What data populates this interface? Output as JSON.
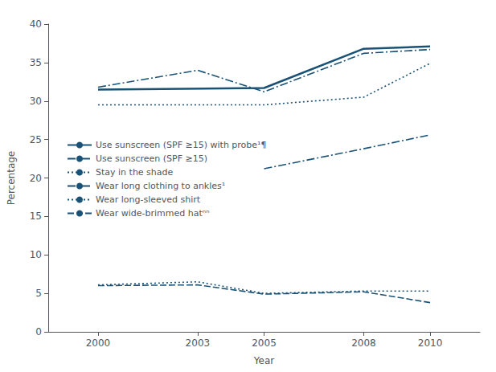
{
  "chart_data": {
    "type": "line",
    "xlabel": "Year",
    "ylabel": "Percentage",
    "x": [
      2000,
      2003,
      2005,
      2008,
      2010
    ],
    "xlim": [
      1998.5,
      2011.5
    ],
    "xticks": [
      2000,
      2003,
      2005,
      2008,
      2010
    ],
    "ylim": [
      0,
      40
    ],
    "yticks": [
      0,
      5,
      10,
      15,
      20,
      25,
      30,
      35,
      40
    ],
    "grid": false,
    "legend": "center left",
    "color": "#1a5276",
    "series": [
      {
        "name": "Use sunscreen (SPF ≥15) with probe¹¶",
        "values": [
          31.5,
          null,
          31.7,
          36.8,
          37.1
        ],
        "line_style": "solid"
      },
      {
        "name": "Use sunscreen (SPF ≥15)",
        "values": [
          31.8,
          34.0,
          31.2,
          36.2,
          36.7
        ],
        "line_style": "dashdot"
      },
      {
        "name": "Stay in the shade",
        "values": [
          29.5,
          29.5,
          29.5,
          30.5,
          34.9
        ],
        "line_style": "dotted"
      },
      {
        "name": "Wear long clothing to ankles¹",
        "values": [
          null,
          null,
          21.2,
          23.8,
          25.6
        ],
        "line_style": "dashdot"
      },
      {
        "name": "Wear long-sleeved shirt",
        "values": [
          6.1,
          6.5,
          5.0,
          5.3,
          5.3
        ],
        "line_style": "dotted"
      },
      {
        "name": "Wear wide-brimmed hatⁿⁿ",
        "values": [
          6.0,
          6.1,
          4.9,
          5.2,
          3.8
        ],
        "line_style": "dashed"
      }
    ]
  }
}
